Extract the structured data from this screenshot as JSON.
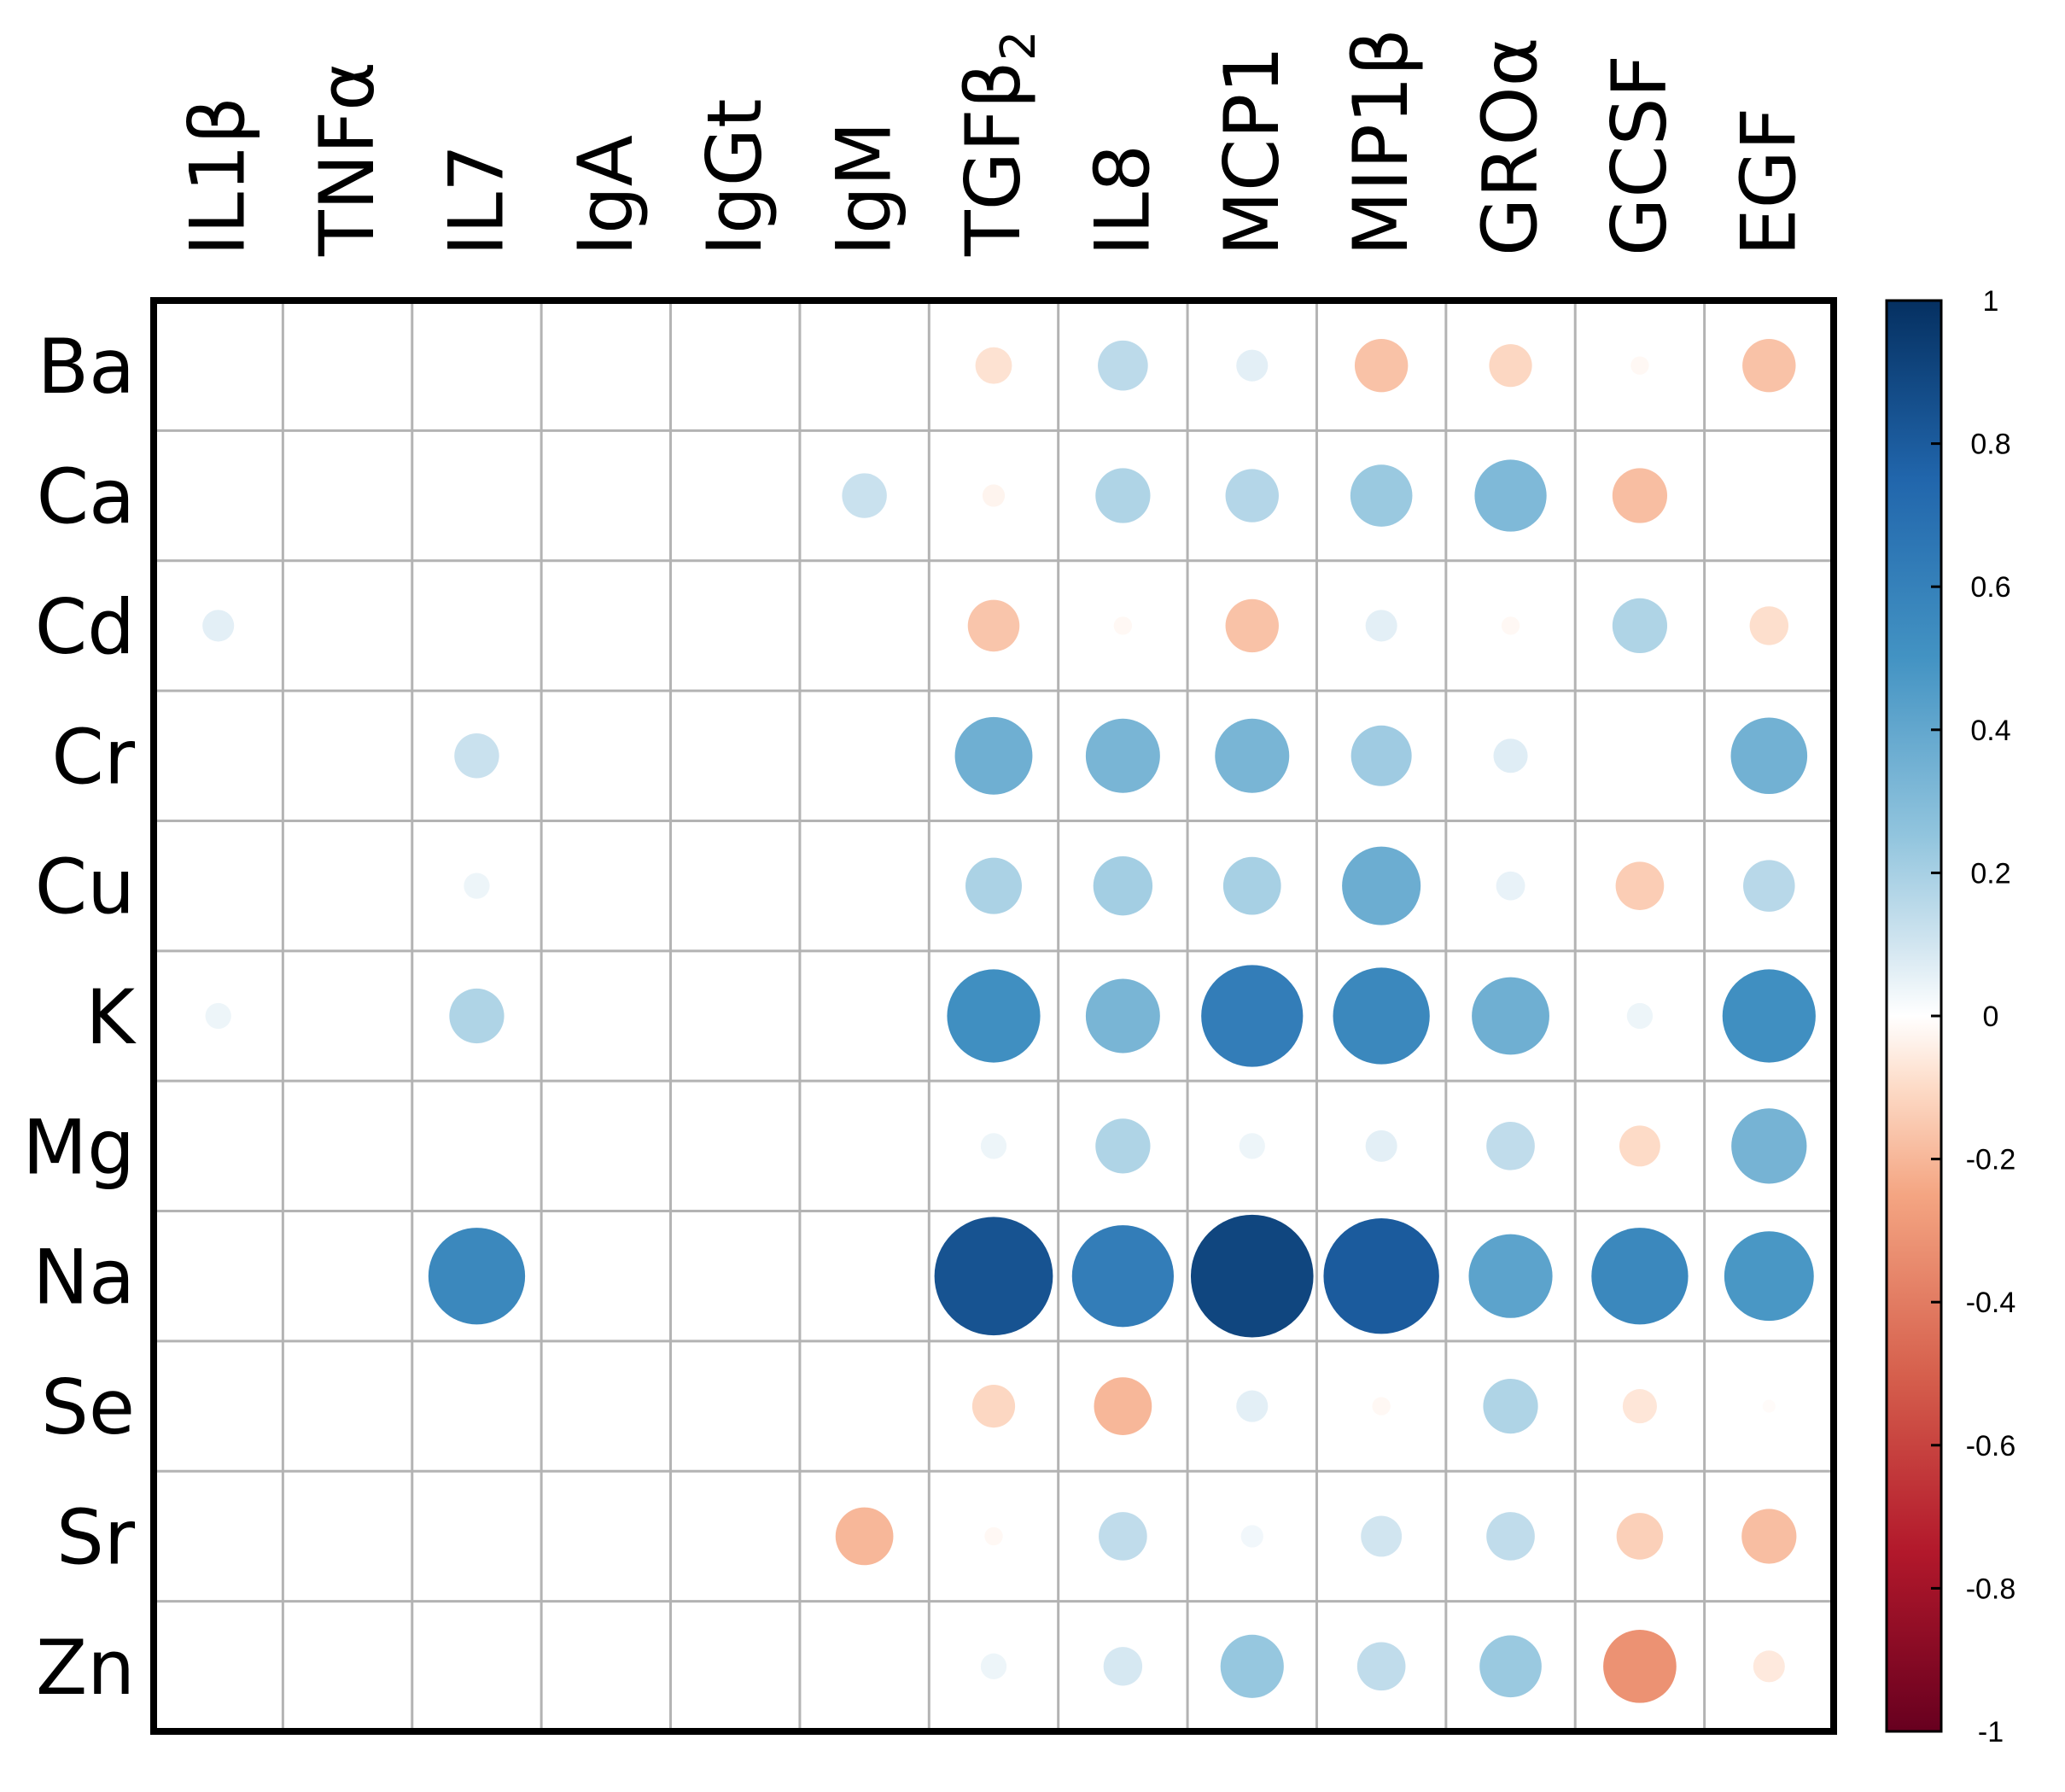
{
  "chart_data": {
    "type": "heatmap",
    "style": "correlation-circles",
    "rows": [
      "Ba",
      "Ca",
      "Cd",
      "Cr",
      "Cu",
      "K",
      "Mg",
      "Na",
      "Se",
      "Sr",
      "Zn"
    ],
    "columns": [
      "IL1β",
      "TNFα",
      "IL7",
      "IgA",
      "IgGt",
      "IgM",
      "TGFβ2",
      "IL8",
      "MCP1",
      "MIP1β",
      "GROα",
      "GCSF",
      "EGF"
    ],
    "column_display": {
      "TGFβ2": {
        "base": "TGFβ",
        "subscript": "2"
      }
    },
    "values": [
      [
        null,
        null,
        null,
        null,
        null,
        null,
        -0.08,
        0.15,
        0.06,
        -0.17,
        -0.11,
        -0.02,
        -0.17
      ],
      [
        null,
        null,
        null,
        null,
        null,
        0.12,
        -0.03,
        0.18,
        0.17,
        0.23,
        0.31,
        -0.18,
        null
      ],
      [
        0.06,
        null,
        null,
        null,
        null,
        null,
        -0.16,
        -0.02,
        -0.17,
        0.06,
        -0.02,
        0.18,
        -0.09
      ],
      [
        null,
        null,
        0.12,
        null,
        null,
        null,
        0.36,
        0.33,
        0.33,
        0.22,
        0.07,
        null,
        0.35
      ],
      [
        null,
        null,
        0.04,
        null,
        null,
        null,
        0.19,
        0.21,
        0.2,
        0.37,
        0.05,
        -0.14,
        0.16
      ],
      [
        0.04,
        null,
        0.18,
        null,
        null,
        null,
        0.52,
        0.33,
        0.62,
        0.56,
        0.36,
        0.04,
        0.52
      ],
      [
        null,
        null,
        null,
        null,
        null,
        null,
        0.04,
        0.18,
        0.04,
        0.06,
        0.14,
        -0.1,
        0.34
      ],
      [
        null,
        null,
        0.56,
        null,
        null,
        null,
        0.84,
        0.62,
        0.9,
        0.8,
        0.42,
        0.56,
        0.48
      ],
      [
        null,
        null,
        null,
        null,
        null,
        null,
        -0.11,
        -0.2,
        0.06,
        -0.02,
        0.18,
        -0.07,
        -0.01
      ],
      [
        null,
        null,
        null,
        null,
        null,
        -0.2,
        -0.02,
        0.14,
        0.03,
        0.1,
        0.14,
        -0.13,
        -0.18
      ],
      [
        null,
        null,
        null,
        null,
        null,
        null,
        0.04,
        0.09,
        0.24,
        0.14,
        0.23,
        -0.32,
        -0.06
      ]
    ],
    "colorbar": {
      "range": [
        -1,
        1
      ],
      "ticks": [
        "1",
        "0.8",
        "0.6",
        "0.4",
        "0.2",
        "0",
        "-0.2",
        "-0.4",
        "-0.6",
        "-0.8",
        "-1"
      ],
      "stops": [
        {
          "v": -1.0,
          "color": "#67001f"
        },
        {
          "v": -0.75,
          "color": "#b2182b"
        },
        {
          "v": -0.5,
          "color": "#d6604d"
        },
        {
          "v": -0.25,
          "color": "#f4a582"
        },
        {
          "v": -0.1,
          "color": "#fddbc7"
        },
        {
          "v": 0.0,
          "color": "#ffffff"
        },
        {
          "v": 0.1,
          "color": "#d1e5f0"
        },
        {
          "v": 0.25,
          "color": "#92c5de"
        },
        {
          "v": 0.5,
          "color": "#4393c3"
        },
        {
          "v": 0.75,
          "color": "#2166ac"
        },
        {
          "v": 1.0,
          "color": "#053061"
        }
      ]
    },
    "colors": {
      "grid": "#b3b3b3",
      "frame": "#000000",
      "background": "#ffffff"
    },
    "title": "",
    "xlabel": "",
    "ylabel": ""
  }
}
